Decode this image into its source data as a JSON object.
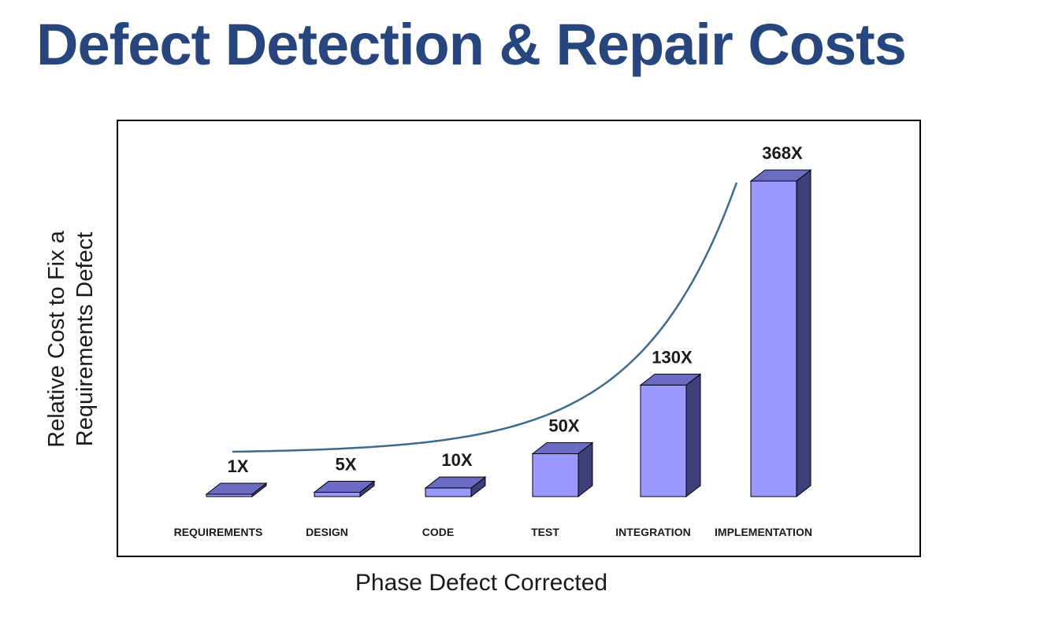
{
  "title": "Defect Detection & Repair Costs",
  "chart_data": {
    "type": "bar",
    "title": "Defect Detection & Repair Costs",
    "xlabel": "Phase Defect Corrected",
    "ylabel_lines": [
      "Relative Cost to Fix a",
      "Requirements Defect"
    ],
    "categories": [
      "REQUIREMENTS",
      "DESIGN",
      "CODE",
      "TEST",
      "INTEGRATION",
      "IMPLEMENTATION"
    ],
    "values": [
      1,
      5,
      10,
      50,
      130,
      368
    ],
    "data_labels": [
      "1X",
      "5X",
      "10X",
      "50X",
      "130X",
      "368X"
    ],
    "ylim": [
      0,
      368
    ],
    "grid": false,
    "trend_line": true,
    "colors": {
      "title": "#27467e",
      "bar_front": "#9999ff",
      "bar_top": "#6b6bc4",
      "bar_side": "#3f3f7a",
      "trend": "#3d6b8c",
      "frame": "#000000"
    }
  }
}
